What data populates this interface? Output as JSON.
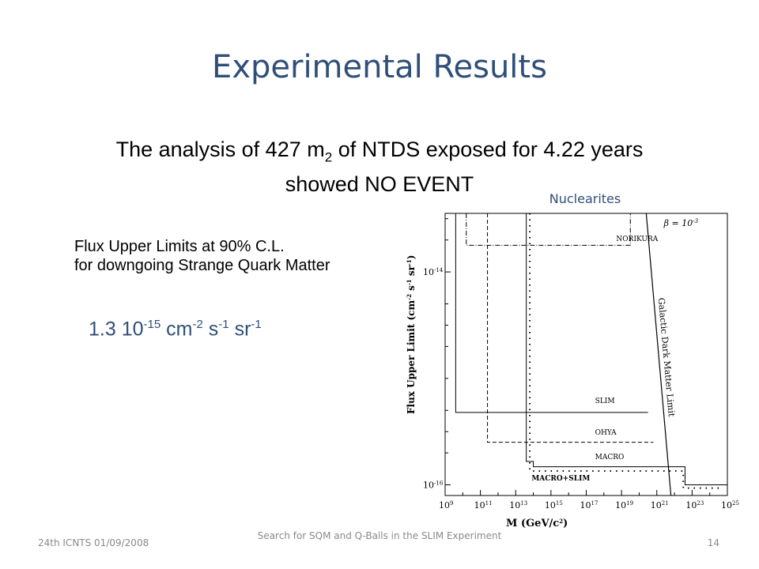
{
  "slide": {
    "title": "Experimental Results",
    "summary_line1_pre": "The analysis of 427 m",
    "summary_line1_sub": "2",
    "summary_line1_post": " of NTDS exposed for 4.22 years",
    "summary_line2": "showed NO EVENT",
    "nuclearites_label": "Nuclearites",
    "flux_label_line1": "Flux Upper Limits at  90% C.L.",
    "flux_label_line2": "for  downgoing Strange Quark Matter",
    "flux_value": {
      "mantissa": "1.3 10",
      "exp1": "-15",
      "unit1": " cm",
      "exp2": "-2",
      "unit2": " s",
      "exp3": "-1",
      "unit3": " sr",
      "exp4": "-1"
    }
  },
  "footer": {
    "left": "24th ICNTS 01/09/2008",
    "center": "Search for SQM and Q-Balls in the SLIM Experiment",
    "page": "14"
  },
  "chart_data": {
    "type": "line",
    "xlabel": "M (GeV/c²)",
    "ylabel": "Flux Upper Limit (cm⁻² s⁻¹ sr⁻¹)",
    "xscale": "log",
    "yscale": "log",
    "xlim_log10": [
      9,
      25
    ],
    "ylim_log10": [
      -16.1,
      -13.45
    ],
    "x_tick_log10": [
      9,
      11,
      13,
      15,
      17,
      19,
      21,
      23,
      25
    ],
    "x_tick_labels": [
      {
        "base": "10",
        "exp": "9"
      },
      {
        "base": "10",
        "exp": "11"
      },
      {
        "base": "10",
        "exp": "13"
      },
      {
        "base": "10",
        "exp": "15"
      },
      {
        "base": "10",
        "exp": "17"
      },
      {
        "base": "10",
        "exp": "19"
      },
      {
        "base": "10",
        "exp": "21"
      },
      {
        "base": "10",
        "exp": "23"
      },
      {
        "base": "10",
        "exp": "25"
      }
    ],
    "y_tick_log10": [
      -14,
      -16
    ],
    "y_tick_labels": [
      {
        "base": "10",
        "exp": "-14"
      },
      {
        "base": "10",
        "exp": "-16"
      }
    ],
    "beta_annotation": {
      "text": "β = 10",
      "exp": "-3"
    },
    "galactic_limit_label": "Galactic Dark Matter Limit",
    "galactic_limit": {
      "x_log10": [
        20.4,
        21.8
      ],
      "y_log10": [
        -13.45,
        -16.1
      ]
    },
    "series": [
      {
        "name": "NORIKURA",
        "style": "dashdot",
        "label_at": {
          "x_log10": 18.7,
          "y_log10": -13.71
        },
        "points": [
          [
            10.2,
            -13.45
          ],
          [
            10.2,
            -13.75
          ],
          [
            19.5,
            -13.75
          ],
          [
            19.5,
            -13.45
          ]
        ]
      },
      {
        "name": "SLIM",
        "style": "solid",
        "label_at": {
          "x_log10": 17.5,
          "y_log10": -15.23
        },
        "points": [
          [
            9.6,
            -13.45
          ],
          [
            9.6,
            -15.32
          ],
          [
            20.5,
            -15.32
          ]
        ]
      },
      {
        "name": "OHYA",
        "style": "dashed",
        "label_at": {
          "x_log10": 17.5,
          "y_log10": -15.53
        },
        "points": [
          [
            11.4,
            -13.45
          ],
          [
            11.4,
            -15.6
          ],
          [
            20.8,
            -15.6
          ]
        ]
      },
      {
        "name": "MACRO",
        "style": "solid",
        "label_at": {
          "x_log10": 17.5,
          "y_log10": -15.76
        },
        "points": [
          [
            13.6,
            -13.45
          ],
          [
            13.6,
            -15.78
          ],
          [
            14.0,
            -15.78
          ],
          [
            14.0,
            -15.83
          ],
          [
            22.6,
            -15.83
          ],
          [
            22.6,
            -16.0
          ],
          [
            25,
            -16.0
          ]
        ]
      },
      {
        "name": "MACRO+SLIM",
        "style": "dotted",
        "label_at": {
          "x_log10": 13.9,
          "y_log10": -15.96
        },
        "points": [
          [
            13.8,
            -13.45
          ],
          [
            13.8,
            -15.87
          ],
          [
            22.5,
            -15.87
          ],
          [
            22.5,
            -16.03
          ],
          [
            24.7,
            -16.03
          ]
        ]
      }
    ]
  }
}
